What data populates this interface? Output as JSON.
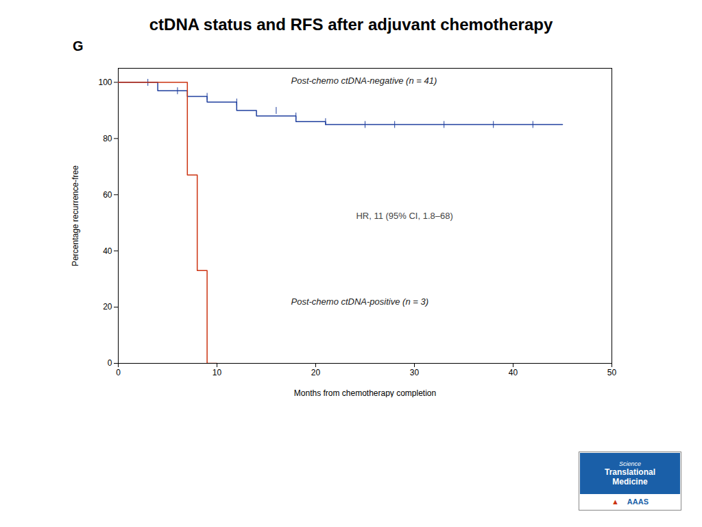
{
  "chart_data": {
    "type": "line",
    "line_style": "step",
    "title": "ctDNA status and RFS after adjuvant chemotherapy",
    "xlabel": "Months from chemotherapy completion",
    "ylabel": "Percentage recurrence-free",
    "xlim": [
      0,
      50
    ],
    "ylim": [
      0,
      105
    ],
    "xticks": [
      0,
      10,
      20,
      30,
      40,
      50
    ],
    "yticks": [
      0,
      20,
      40,
      60,
      80,
      100
    ],
    "panel_label": "G",
    "annotations": [
      "HR, 11 (95% CI, 1.8–68)"
    ],
    "logo": [
      "Science",
      "Translational",
      "Medicine",
      "▲",
      "AAAS"
    ],
    "series": [
      {
        "name": "Post-chemo ctDNA-negative (n = 41)",
        "color": "#1f3f9e",
        "x": [
          0,
          3,
          4,
          6,
          7,
          8,
          9,
          10,
          11,
          12,
          13,
          14,
          16,
          18,
          20,
          21,
          22,
          23,
          25,
          26,
          28,
          30,
          31,
          33,
          35,
          37,
          38,
          40,
          41,
          42,
          44,
          45
        ],
        "values": [
          100,
          100,
          97,
          97,
          95,
          95,
          93,
          93,
          93,
          90,
          90,
          88,
          88,
          86,
          86,
          85,
          85,
          85,
          85,
          85,
          85,
          85,
          85,
          85,
          85,
          85,
          85,
          85,
          85,
          85,
          85,
          85
        ],
        "censor_x": [
          3,
          6,
          9,
          12,
          16,
          18,
          21,
          25,
          28,
          33,
          38,
          42
        ],
        "censor_y": [
          100,
          97,
          95,
          93,
          90,
          88,
          86,
          85,
          85,
          85,
          85,
          85
        ]
      },
      {
        "name": "Post-chemo ctDNA-positive (n = 3)",
        "color": "#cc3311",
        "x": [
          0,
          7,
          8,
          9,
          10
        ],
        "values": [
          100,
          67,
          33,
          0,
          0
        ]
      }
    ]
  }
}
